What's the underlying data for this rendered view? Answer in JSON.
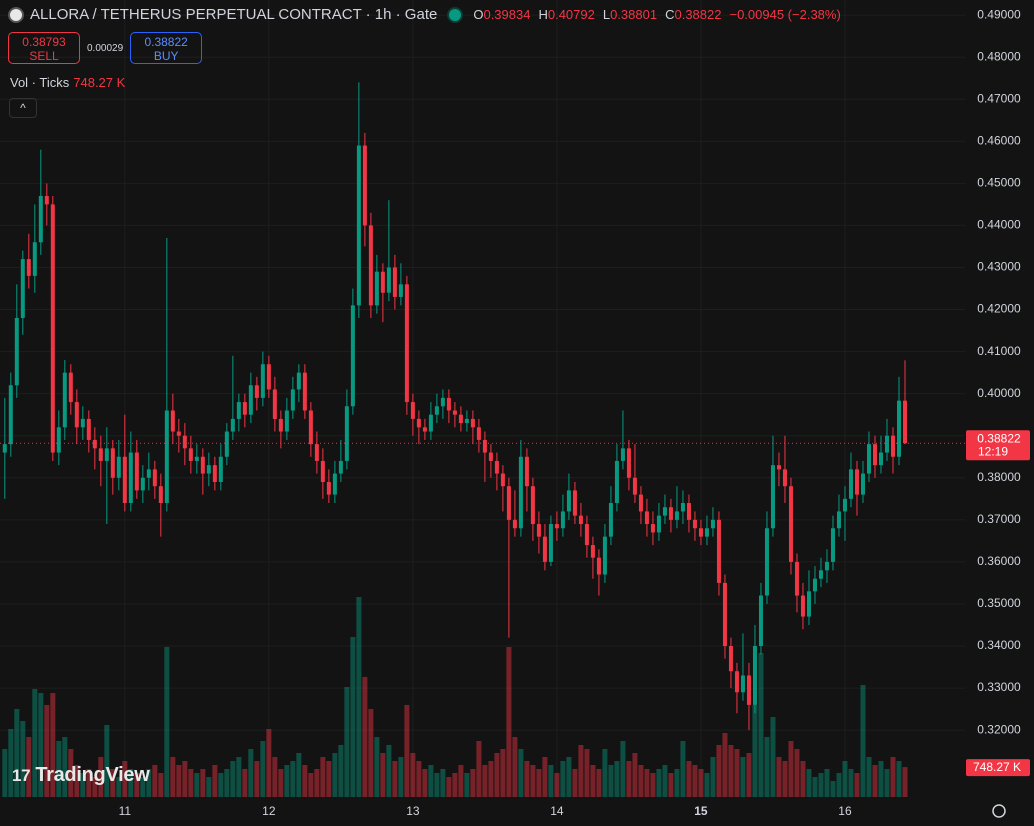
{
  "chart_data": {
    "type": "candlestick",
    "title": "ALLORA / TETHERUS PERPETUAL CONTRACT · 1h · Gate",
    "ohlc_header": [
      {
        "key": "O",
        "value": 0.39834
      },
      {
        "key": "H",
        "value": 0.40792
      },
      {
        "key": "L",
        "value": 0.38801
      },
      {
        "key": "C",
        "value": 0.38822
      }
    ],
    "change": -0.00945,
    "change_label": "−0.00945 (−2.38%)",
    "sell": {
      "price": 0.38793,
      "label": "SELL"
    },
    "spread": 0.00029,
    "buy": {
      "price": 0.38822,
      "label": "BUY"
    },
    "volume_title": "Vol · Ticks",
    "volume_label": "748.27 K",
    "countdown": "12:19",
    "logo": "TradingView",
    "up_color": "#089981",
    "down_color": "#f23645",
    "grid": true,
    "xlim": [
      -0.8,
      160
    ],
    "xticks": [
      {
        "value": 20,
        "label": "11"
      },
      {
        "value": 44,
        "label": "12"
      },
      {
        "value": 68,
        "label": "13"
      },
      {
        "value": 92,
        "label": "14"
      },
      {
        "value": 116,
        "label": "15"
      },
      {
        "value": 140,
        "label": "16"
      }
    ],
    "ylim": [
      0.3041,
      0.4936
    ],
    "yticks": [
      {
        "value": 0.32,
        "label": "0.32000"
      },
      {
        "value": 0.33,
        "label": "0.33000"
      },
      {
        "value": 0.34,
        "label": "0.34000"
      },
      {
        "value": 0.35,
        "label": "0.35000"
      },
      {
        "value": 0.36,
        "label": "0.36000"
      },
      {
        "value": 0.37,
        "label": "0.37000"
      },
      {
        "value": 0.38,
        "label": "0.38000"
      },
      {
        "value": 0.39,
        "label": "0.39000"
      },
      {
        "value": 0.4,
        "label": "0.40000"
      },
      {
        "value": 0.41,
        "label": "0.41000"
      },
      {
        "value": 0.42,
        "label": "0.42000"
      },
      {
        "value": 0.43,
        "label": "0.43000"
      },
      {
        "value": 0.44,
        "label": "0.44000"
      },
      {
        "value": 0.45,
        "label": "0.45000"
      },
      {
        "value": 0.46,
        "label": "0.46000"
      },
      {
        "value": 0.47,
        "label": "0.47000"
      },
      {
        "value": 0.48,
        "label": "0.48000"
      },
      {
        "value": 0.49,
        "label": "0.49000"
      }
    ],
    "ohlc": [
      [
        0.386,
        0.399,
        0.375,
        0.388
      ],
      [
        0.388,
        0.405,
        0.385,
        0.402
      ],
      [
        0.402,
        0.426,
        0.399,
        0.418
      ],
      [
        0.418,
        0.434,
        0.414,
        0.432
      ],
      [
        0.432,
        0.438,
        0.425,
        0.428
      ],
      [
        0.428,
        0.445,
        0.424,
        0.436
      ],
      [
        0.436,
        0.458,
        0.433,
        0.447
      ],
      [
        0.447,
        0.45,
        0.44,
        0.445
      ],
      [
        0.445,
        0.447,
        0.384,
        0.386
      ],
      [
        0.386,
        0.396,
        0.383,
        0.392
      ],
      [
        0.392,
        0.408,
        0.389,
        0.405
      ],
      [
        0.405,
        0.407,
        0.395,
        0.398
      ],
      [
        0.398,
        0.401,
        0.388,
        0.392
      ],
      [
        0.392,
        0.397,
        0.389,
        0.394
      ],
      [
        0.394,
        0.396,
        0.386,
        0.389
      ],
      [
        0.389,
        0.392,
        0.382,
        0.387
      ],
      [
        0.387,
        0.39,
        0.378,
        0.384
      ],
      [
        0.384,
        0.392,
        0.369,
        0.387
      ],
      [
        0.387,
        0.389,
        0.376,
        0.38
      ],
      [
        0.38,
        0.389,
        0.377,
        0.385
      ],
      [
        0.385,
        0.395,
        0.372,
        0.374
      ],
      [
        0.374,
        0.391,
        0.372,
        0.386
      ],
      [
        0.386,
        0.389,
        0.375,
        0.377
      ],
      [
        0.377,
        0.383,
        0.374,
        0.38
      ],
      [
        0.38,
        0.386,
        0.377,
        0.382
      ],
      [
        0.382,
        0.384,
        0.375,
        0.378
      ],
      [
        0.378,
        0.381,
        0.366,
        0.374
      ],
      [
        0.374,
        0.437,
        0.372,
        0.396
      ],
      [
        0.396,
        0.4,
        0.388,
        0.391
      ],
      [
        0.391,
        0.394,
        0.386,
        0.39
      ],
      [
        0.39,
        0.393,
        0.383,
        0.387
      ],
      [
        0.387,
        0.39,
        0.381,
        0.384
      ],
      [
        0.384,
        0.388,
        0.381,
        0.385
      ],
      [
        0.385,
        0.387,
        0.376,
        0.381
      ],
      [
        0.381,
        0.386,
        0.378,
        0.383
      ],
      [
        0.383,
        0.385,
        0.377,
        0.379
      ],
      [
        0.379,
        0.388,
        0.377,
        0.385
      ],
      [
        0.385,
        0.393,
        0.383,
        0.391
      ],
      [
        0.391,
        0.409,
        0.389,
        0.394
      ],
      [
        0.394,
        0.4,
        0.391,
        0.398
      ],
      [
        0.398,
        0.4,
        0.392,
        0.395
      ],
      [
        0.395,
        0.405,
        0.393,
        0.402
      ],
      [
        0.402,
        0.404,
        0.396,
        0.399
      ],
      [
        0.399,
        0.41,
        0.397,
        0.407
      ],
      [
        0.407,
        0.409,
        0.399,
        0.401
      ],
      [
        0.401,
        0.404,
        0.391,
        0.394
      ],
      [
        0.394,
        0.396,
        0.387,
        0.391
      ],
      [
        0.391,
        0.399,
        0.389,
        0.396
      ],
      [
        0.396,
        0.404,
        0.394,
        0.401
      ],
      [
        0.401,
        0.407,
        0.398,
        0.405
      ],
      [
        0.405,
        0.407,
        0.394,
        0.396
      ],
      [
        0.396,
        0.398,
        0.385,
        0.388
      ],
      [
        0.388,
        0.391,
        0.381,
        0.384
      ],
      [
        0.384,
        0.387,
        0.375,
        0.379
      ],
      [
        0.379,
        0.382,
        0.374,
        0.376
      ],
      [
        0.376,
        0.384,
        0.374,
        0.381
      ],
      [
        0.381,
        0.389,
        0.379,
        0.384
      ],
      [
        0.384,
        0.401,
        0.382,
        0.397
      ],
      [
        0.397,
        0.425,
        0.395,
        0.421
      ],
      [
        0.421,
        0.474,
        0.418,
        0.459
      ],
      [
        0.459,
        0.462,
        0.435,
        0.44
      ],
      [
        0.44,
        0.443,
        0.418,
        0.421
      ],
      [
        0.421,
        0.433,
        0.419,
        0.429
      ],
      [
        0.429,
        0.431,
        0.417,
        0.424
      ],
      [
        0.424,
        0.446,
        0.422,
        0.43
      ],
      [
        0.43,
        0.433,
        0.42,
        0.423
      ],
      [
        0.423,
        0.431,
        0.421,
        0.426
      ],
      [
        0.426,
        0.428,
        0.395,
        0.398
      ],
      [
        0.398,
        0.4,
        0.39,
        0.394
      ],
      [
        0.394,
        0.396,
        0.388,
        0.392
      ],
      [
        0.392,
        0.394,
        0.389,
        0.391
      ],
      [
        0.391,
        0.398,
        0.389,
        0.395
      ],
      [
        0.395,
        0.4,
        0.393,
        0.397
      ],
      [
        0.397,
        0.401,
        0.394,
        0.399
      ],
      [
        0.399,
        0.401,
        0.393,
        0.396
      ],
      [
        0.396,
        0.398,
        0.392,
        0.395
      ],
      [
        0.395,
        0.397,
        0.391,
        0.393
      ],
      [
        0.393,
        0.396,
        0.391,
        0.394
      ],
      [
        0.394,
        0.396,
        0.388,
        0.392
      ],
      [
        0.392,
        0.394,
        0.386,
        0.389
      ],
      [
        0.389,
        0.391,
        0.379,
        0.386
      ],
      [
        0.386,
        0.388,
        0.38,
        0.384
      ],
      [
        0.384,
        0.386,
        0.377,
        0.381
      ],
      [
        0.381,
        0.383,
        0.372,
        0.378
      ],
      [
        0.378,
        0.38,
        0.342,
        0.37
      ],
      [
        0.37,
        0.377,
        0.366,
        0.368
      ],
      [
        0.368,
        0.389,
        0.366,
        0.385
      ],
      [
        0.385,
        0.387,
        0.372,
        0.378
      ],
      [
        0.378,
        0.38,
        0.365,
        0.369
      ],
      [
        0.369,
        0.372,
        0.362,
        0.366
      ],
      [
        0.366,
        0.369,
        0.358,
        0.36
      ],
      [
        0.36,
        0.371,
        0.359,
        0.369
      ],
      [
        0.369,
        0.372,
        0.365,
        0.368
      ],
      [
        0.368,
        0.376,
        0.366,
        0.372
      ],
      [
        0.372,
        0.381,
        0.37,
        0.377
      ],
      [
        0.377,
        0.379,
        0.369,
        0.371
      ],
      [
        0.371,
        0.374,
        0.366,
        0.369
      ],
      [
        0.369,
        0.371,
        0.361,
        0.364
      ],
      [
        0.364,
        0.366,
        0.356,
        0.361
      ],
      [
        0.361,
        0.363,
        0.352,
        0.357
      ],
      [
        0.357,
        0.369,
        0.355,
        0.366
      ],
      [
        0.366,
        0.378,
        0.364,
        0.374
      ],
      [
        0.374,
        0.388,
        0.372,
        0.384
      ],
      [
        0.384,
        0.396,
        0.382,
        0.387
      ],
      [
        0.387,
        0.389,
        0.377,
        0.38
      ],
      [
        0.38,
        0.388,
        0.374,
        0.376
      ],
      [
        0.376,
        0.378,
        0.369,
        0.372
      ],
      [
        0.372,
        0.375,
        0.366,
        0.369
      ],
      [
        0.369,
        0.372,
        0.364,
        0.367
      ],
      [
        0.367,
        0.374,
        0.365,
        0.371
      ],
      [
        0.371,
        0.376,
        0.369,
        0.373
      ],
      [
        0.373,
        0.375,
        0.367,
        0.37
      ],
      [
        0.37,
        0.378,
        0.368,
        0.372
      ],
      [
        0.372,
        0.377,
        0.369,
        0.374
      ],
      [
        0.374,
        0.376,
        0.367,
        0.37
      ],
      [
        0.37,
        0.372,
        0.365,
        0.368
      ],
      [
        0.368,
        0.37,
        0.364,
        0.366
      ],
      [
        0.366,
        0.371,
        0.364,
        0.368
      ],
      [
        0.368,
        0.373,
        0.366,
        0.37
      ],
      [
        0.37,
        0.372,
        0.352,
        0.355
      ],
      [
        0.355,
        0.357,
        0.337,
        0.34
      ],
      [
        0.34,
        0.342,
        0.33,
        0.334
      ],
      [
        0.334,
        0.336,
        0.324,
        0.329
      ],
      [
        0.329,
        0.343,
        0.327,
        0.333
      ],
      [
        0.333,
        0.336,
        0.32,
        0.326
      ],
      [
        0.326,
        0.345,
        0.324,
        0.34
      ],
      [
        0.34,
        0.355,
        0.338,
        0.352
      ],
      [
        0.352,
        0.372,
        0.35,
        0.368
      ],
      [
        0.368,
        0.39,
        0.366,
        0.383
      ],
      [
        0.383,
        0.386,
        0.378,
        0.382
      ],
      [
        0.382,
        0.39,
        0.374,
        0.378
      ],
      [
        0.378,
        0.38,
        0.357,
        0.36
      ],
      [
        0.36,
        0.362,
        0.348,
        0.352
      ],
      [
        0.352,
        0.355,
        0.344,
        0.347
      ],
      [
        0.347,
        0.358,
        0.345,
        0.353
      ],
      [
        0.353,
        0.359,
        0.35,
        0.356
      ],
      [
        0.356,
        0.361,
        0.354,
        0.358
      ],
      [
        0.358,
        0.363,
        0.355,
        0.36
      ],
      [
        0.36,
        0.371,
        0.358,
        0.368
      ],
      [
        0.368,
        0.376,
        0.366,
        0.372
      ],
      [
        0.372,
        0.378,
        0.365,
        0.375
      ],
      [
        0.375,
        0.386,
        0.373,
        0.382
      ],
      [
        0.382,
        0.384,
        0.371,
        0.376
      ],
      [
        0.376,
        0.384,
        0.374,
        0.381
      ],
      [
        0.381,
        0.391,
        0.379,
        0.388
      ],
      [
        0.388,
        0.39,
        0.38,
        0.383
      ],
      [
        0.383,
        0.39,
        0.381,
        0.386
      ],
      [
        0.386,
        0.394,
        0.384,
        0.39
      ],
      [
        0.39,
        0.392,
        0.381,
        0.385
      ],
      [
        0.385,
        0.404,
        0.383,
        0.39834
      ],
      [
        0.39834,
        0.40792,
        0.38801,
        0.38822
      ]
    ],
    "volumes": [
      1200000,
      1700000,
      2200000,
      1900000,
      1500000,
      2700000,
      2600000,
      2300000,
      2600000,
      1400000,
      1500000,
      1200000,
      800000,
      600000,
      700000,
      500000,
      1000000,
      1800000,
      700000,
      500000,
      900000,
      700000,
      600000,
      500000,
      700000,
      800000,
      600000,
      3750000,
      1000000,
      800000,
      900000,
      700000,
      600000,
      700000,
      500000,
      800000,
      600000,
      700000,
      900000,
      1000000,
      700000,
      1200000,
      900000,
      1400000,
      1700000,
      1000000,
      700000,
      800000,
      900000,
      1100000,
      800000,
      600000,
      700000,
      1000000,
      900000,
      1100000,
      1300000,
      2750000,
      4000000,
      5000000,
      3000000,
      2200000,
      1500000,
      1100000,
      1300000,
      900000,
      1000000,
      2300000,
      1100000,
      900000,
      700000,
      800000,
      600000,
      700000,
      500000,
      600000,
      800000,
      600000,
      700000,
      1400000,
      800000,
      900000,
      1100000,
      1200000,
      3750000,
      1500000,
      1200000,
      900000,
      800000,
      700000,
      1000000,
      800000,
      600000,
      900000,
      1000000,
      700000,
      1300000,
      1200000,
      800000,
      700000,
      1200000,
      800000,
      900000,
      1400000,
      900000,
      1100000,
      800000,
      700000,
      600000,
      700000,
      800000,
      600000,
      700000,
      1400000,
      900000,
      800000,
      700000,
      600000,
      1000000,
      1300000,
      1600000,
      1300000,
      1200000,
      1000000,
      1100000,
      2300000,
      3600000,
      1500000,
      2000000,
      1000000,
      900000,
      1400000,
      1200000,
      900000,
      700000,
      500000,
      600000,
      700000,
      400000,
      600000,
      900000,
      700000,
      600000,
      2800000,
      1000000,
      800000,
      900000,
      700000,
      1000000,
      900000,
      748270
    ]
  }
}
